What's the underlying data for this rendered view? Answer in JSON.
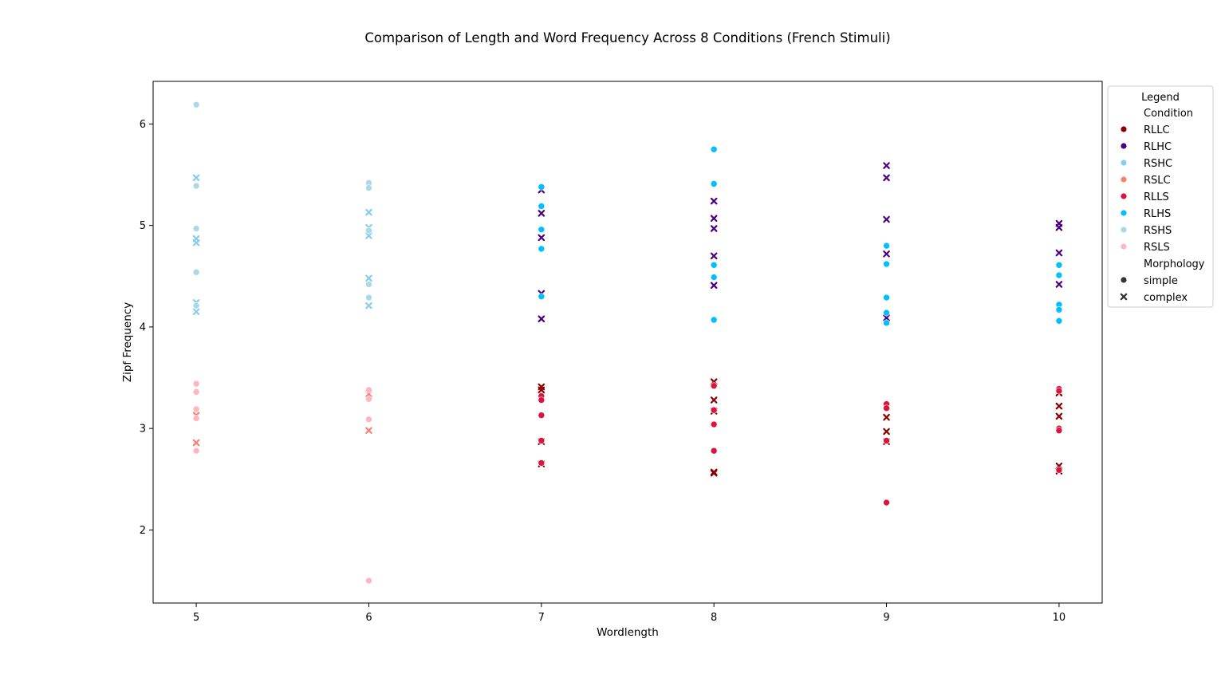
{
  "chart_data": {
    "type": "scatter",
    "title": "Comparison of Length and Word Frequency Across 8 Conditions (French Stimuli)",
    "xlabel": "Wordlength",
    "ylabel": "Zipf Frequency",
    "xlim": [
      4.75,
      10.25
    ],
    "ylim": [
      1.28,
      6.42
    ],
    "xticks": [
      "5",
      "6",
      "7",
      "8",
      "9",
      "10"
    ],
    "yticks": [
      "2",
      "3",
      "4",
      "5",
      "6"
    ],
    "grid": false,
    "legend": {
      "title": "Legend",
      "placement": "outside-right",
      "hue_title": "Condition",
      "style_title": "Morphology",
      "style_labels": [
        "simple",
        "complex"
      ]
    },
    "series": [
      {
        "name": "RLLC",
        "color": "#8b0000",
        "marker": "complex",
        "points": [
          [
            7,
            3.41
          ],
          [
            7,
            3.38
          ],
          [
            7,
            2.87
          ],
          [
            7,
            2.65
          ],
          [
            8,
            3.46
          ],
          [
            8,
            3.28
          ],
          [
            8,
            3.17
          ],
          [
            8,
            2.56
          ],
          [
            8,
            2.57
          ],
          [
            9,
            3.22
          ],
          [
            9,
            3.11
          ],
          [
            9,
            2.97
          ],
          [
            9,
            2.87
          ],
          [
            10,
            3.35
          ],
          [
            10,
            3.22
          ],
          [
            10,
            3.12
          ],
          [
            10,
            2.63
          ],
          [
            10,
            2.58
          ]
        ]
      },
      {
        "name": "RLHC",
        "color": "#4b0082",
        "marker": "complex",
        "points": [
          [
            7,
            5.35
          ],
          [
            7,
            5.12
          ],
          [
            7,
            4.88
          ],
          [
            7,
            4.33
          ],
          [
            7,
            4.08
          ],
          [
            8,
            5.24
          ],
          [
            8,
            5.07
          ],
          [
            8,
            4.97
          ],
          [
            8,
            4.7
          ],
          [
            8,
            4.41
          ],
          [
            9,
            5.59
          ],
          [
            9,
            5.47
          ],
          [
            9,
            5.06
          ],
          [
            9,
            4.72
          ],
          [
            9,
            4.09
          ],
          [
            10,
            5.02
          ],
          [
            10,
            4.98
          ],
          [
            10,
            4.73
          ],
          [
            10,
            4.42
          ]
        ]
      },
      {
        "name": "RSHC",
        "color": "#87ceeb",
        "marker": "complex",
        "points": [
          [
            5,
            5.47
          ],
          [
            5,
            4.87
          ],
          [
            5,
            4.83
          ],
          [
            5,
            4.24
          ],
          [
            5,
            4.15
          ],
          [
            6,
            5.13
          ],
          [
            6,
            4.98
          ],
          [
            6,
            4.9
          ],
          [
            6,
            4.48
          ],
          [
            6,
            4.21
          ]
        ]
      },
      {
        "name": "RSLC",
        "color": "#fa8072",
        "marker": "complex",
        "points": [
          [
            5,
            3.13
          ],
          [
            5,
            2.86
          ],
          [
            6,
            3.34
          ],
          [
            6,
            2.98
          ]
        ]
      },
      {
        "name": "RLLS",
        "color": "#dc143c",
        "marker": "simple",
        "points": [
          [
            7,
            3.32
          ],
          [
            7,
            3.28
          ],
          [
            7,
            3.13
          ],
          [
            7,
            2.88
          ],
          [
            7,
            2.66
          ],
          [
            8,
            3.42
          ],
          [
            8,
            3.18
          ],
          [
            8,
            3.04
          ],
          [
            8,
            2.78
          ],
          [
            9,
            3.24
          ],
          [
            9,
            3.2
          ],
          [
            9,
            2.88
          ],
          [
            9,
            2.27
          ],
          [
            10,
            3.39
          ],
          [
            10,
            3.37
          ],
          [
            10,
            3.0
          ],
          [
            10,
            2.98
          ],
          [
            10,
            2.59
          ]
        ]
      },
      {
        "name": "RLHS",
        "color": "#00bfff",
        "marker": "simple",
        "points": [
          [
            7,
            5.38
          ],
          [
            7,
            5.19
          ],
          [
            7,
            4.96
          ],
          [
            7,
            4.77
          ],
          [
            7,
            4.3
          ],
          [
            8,
            5.75
          ],
          [
            8,
            5.41
          ],
          [
            8,
            4.61
          ],
          [
            8,
            4.49
          ],
          [
            8,
            4.07
          ],
          [
            9,
            4.8
          ],
          [
            9,
            4.62
          ],
          [
            9,
            4.29
          ],
          [
            9,
            4.14
          ],
          [
            9,
            4.04
          ],
          [
            10,
            4.61
          ],
          [
            10,
            4.51
          ],
          [
            10,
            4.22
          ],
          [
            10,
            4.17
          ],
          [
            10,
            4.06
          ]
        ]
      },
      {
        "name": "RSHS",
        "color": "#add8e6",
        "marker": "simple",
        "points": [
          [
            5,
            6.19
          ],
          [
            5,
            5.39
          ],
          [
            5,
            4.97
          ],
          [
            5,
            4.54
          ],
          [
            5,
            4.21
          ],
          [
            6,
            5.42
          ],
          [
            6,
            5.37
          ],
          [
            6,
            4.95
          ],
          [
            6,
            4.42
          ],
          [
            6,
            4.29
          ]
        ]
      },
      {
        "name": "RSLS",
        "color": "#ffb6c1",
        "marker": "simple",
        "points": [
          [
            5,
            3.44
          ],
          [
            5,
            3.36
          ],
          [
            5,
            3.19
          ],
          [
            5,
            3.1
          ],
          [
            5,
            2.78
          ],
          [
            6,
            3.38
          ],
          [
            6,
            3.29
          ],
          [
            6,
            3.09
          ],
          [
            6,
            1.5
          ]
        ]
      }
    ]
  }
}
